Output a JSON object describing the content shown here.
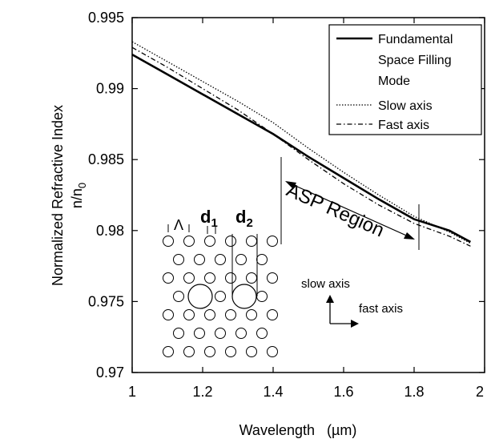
{
  "chart_data": {
    "type": "line",
    "title": "",
    "xlabel": "Wavelength",
    "xlabel_unit": "(µm)",
    "ylabel": "Normalized Refractive Index",
    "ylabel_sub": "n/n",
    "ylabel_sub_index": "0",
    "xlim": [
      1,
      2
    ],
    "ylim": [
      0.97,
      0.995
    ],
    "x_ticks": [
      {
        "v": 1,
        "label": "1"
      },
      {
        "v": 1.2,
        "label": "1.2"
      },
      {
        "v": 1.4,
        "label": "1.4"
      },
      {
        "v": 1.6,
        "label": "1.6"
      },
      {
        "v": 1.8,
        "label": "1.8"
      },
      {
        "v": 2,
        "label": "2"
      }
    ],
    "y_ticks": [
      {
        "v": 0.97,
        "label": "0.97"
      },
      {
        "v": 0.975,
        "label": "0.975"
      },
      {
        "v": 0.98,
        "label": "0.98"
      },
      {
        "v": 0.985,
        "label": "0.985"
      },
      {
        "v": 0.99,
        "label": "0.99"
      },
      {
        "v": 0.995,
        "label": "0.995"
      }
    ],
    "grid": false,
    "legend_position": "top-right",
    "legend": [
      {
        "label": "Fundamental",
        "style": "solid"
      },
      {
        "label": "Space Filling",
        "style": "none"
      },
      {
        "label": "Mode",
        "style": "none"
      },
      {
        "label": "Slow axis",
        "style": "dotted"
      },
      {
        "label": "Fast axis",
        "style": "dashdot"
      }
    ],
    "series": [
      {
        "style": "solid",
        "x": [
          1.0,
          1.1,
          1.2,
          1.3,
          1.4,
          1.5,
          1.6,
          1.7,
          1.8,
          1.9,
          1.96
        ],
        "y": [
          0.9924,
          0.991,
          0.9896,
          0.9882,
          0.9868,
          0.9852,
          0.9837,
          0.9822,
          0.9808,
          0.98,
          0.9792
        ]
      },
      {
        "style": "dotted",
        "x": [
          1.0,
          1.1,
          1.2,
          1.3,
          1.4,
          1.5,
          1.6,
          1.7,
          1.8,
          1.9,
          1.96
        ],
        "y": [
          0.9933,
          0.9919,
          0.9905,
          0.9891,
          0.9876,
          0.9858,
          0.9841,
          0.9825,
          0.981,
          0.9799,
          0.9791
        ]
      },
      {
        "style": "dashdot",
        "x": [
          1.0,
          1.1,
          1.2,
          1.3,
          1.4,
          1.5,
          1.6,
          1.7,
          1.8,
          1.9,
          1.96
        ],
        "y": [
          0.9929,
          0.9915,
          0.99,
          0.9885,
          0.9868,
          0.985,
          0.9833,
          0.9818,
          0.9805,
          0.9796,
          0.9789
        ]
      }
    ],
    "annotations": {
      "asp_region": {
        "label": "ASP Region",
        "x_start": 1.42,
        "x_end": 1.81
      },
      "lattice_pitch": "Λ",
      "d1": {
        "base": "d",
        "sub": "1"
      },
      "d2": {
        "base": "d",
        "sub": "2"
      },
      "slow_axis": "slow axis",
      "fast_axis": "fast axis"
    }
  }
}
